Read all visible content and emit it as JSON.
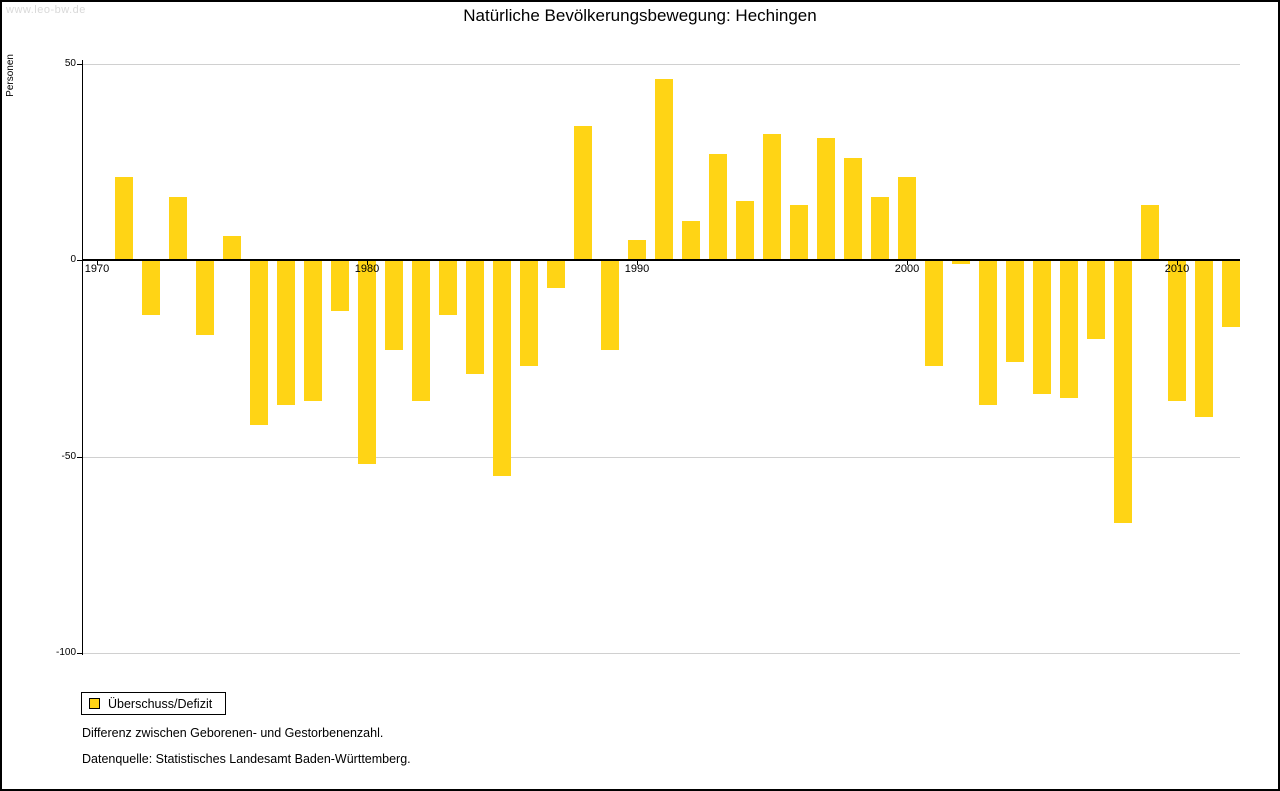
{
  "watermark": "www.leo-bw.de",
  "title": "Natürliche Bevölkerungsbewegung: Hechingen",
  "legend": {
    "label": "Überschuss/Defizit"
  },
  "footnotes": {
    "line1": "Differenz zwischen Geborenen- und Gestorbenenzahl.",
    "line2": "Datenquelle: Statistisches Landesamt Baden-Württemberg."
  },
  "chart_data": {
    "type": "bar",
    "title": "Natürliche Bevölkerungsbewegung: Hechingen",
    "xlabel": "",
    "ylabel": "Personen",
    "ylim": [
      -100,
      50
    ],
    "yticks": [
      50,
      0,
      -50,
      -100
    ],
    "xtick_years": [
      1970,
      1980,
      1990,
      2000,
      2010
    ],
    "legend_entries": [
      "Überschuss/Defizit"
    ],
    "legend_position": "bottom-left",
    "grid": true,
    "bar_color": "#FFD415",
    "categories": [
      1971,
      1972,
      1973,
      1974,
      1975,
      1976,
      1977,
      1978,
      1979,
      1980,
      1981,
      1982,
      1983,
      1984,
      1985,
      1986,
      1987,
      1988,
      1989,
      1990,
      1991,
      1992,
      1993,
      1994,
      1995,
      1996,
      1997,
      1998,
      1999,
      2000,
      2001,
      2002,
      2003,
      2004,
      2005,
      2006,
      2007,
      2008,
      2009,
      2010,
      2011,
      2012
    ],
    "values": [
      21,
      -14,
      16,
      -19,
      6,
      -42,
      -37,
      -36,
      -13,
      -52,
      -23,
      -36,
      -14,
      -29,
      -55,
      -27,
      -7,
      34,
      -23,
      5,
      46,
      10,
      27,
      15,
      32,
      14,
      31,
      26,
      16,
      21,
      -27,
      -1,
      -37,
      -26,
      -34,
      -35,
      -20,
      -67,
      14,
      -36,
      -40,
      -17
    ]
  }
}
